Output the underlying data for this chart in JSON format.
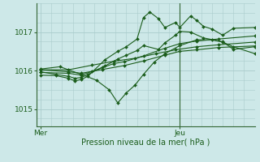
{
  "background_color": "#cde8e8",
  "grid_color": "#aacccc",
  "line_color": "#1a5c1a",
  "axis_color": "#336633",
  "text_color": "#1a5c1a",
  "xlabel": "Pression niveau de la mer( hPa )",
  "xtick_labels": [
    "Mer",
    "Jeu"
  ],
  "xtick_positions": [
    0.0,
    0.65
  ],
  "ytick_labels": [
    "1015",
    "1016",
    "1017"
  ],
  "ytick_positions": [
    1015,
    1016,
    1017
  ],
  "ylim": [
    1014.55,
    1017.75
  ],
  "xlim": [
    -0.02,
    1.0
  ],
  "series": [
    [
      0.0,
      1015.88,
      0.07,
      1015.87,
      0.13,
      1015.8,
      0.16,
      1015.73,
      0.19,
      1015.77,
      0.22,
      1015.85,
      0.3,
      1016.28,
      0.36,
      1016.5,
      0.4,
      1016.62,
      0.45,
      1016.82,
      0.48,
      1017.38,
      0.51,
      1017.52,
      0.55,
      1017.35,
      0.58,
      1017.12,
      0.63,
      1017.25,
      0.65,
      1017.12,
      0.7,
      1017.42,
      0.73,
      1017.3,
      0.76,
      1017.15,
      0.8,
      1017.08,
      0.85,
      1016.92,
      0.9,
      1017.1,
      1.0,
      1017.12
    ],
    [
      0.0,
      1015.97,
      0.07,
      1015.9,
      0.13,
      1015.85,
      0.16,
      1015.8,
      0.19,
      1015.82,
      0.22,
      1015.9,
      0.3,
      1016.12,
      0.36,
      1016.3,
      0.4,
      1016.4,
      0.45,
      1016.52,
      0.48,
      1016.65,
      0.55,
      1016.55,
      0.58,
      1016.72,
      0.63,
      1016.92,
      0.65,
      1017.02,
      0.7,
      1017.0,
      0.76,
      1016.85,
      0.85,
      1016.75,
      0.9,
      1016.55,
      1.0,
      1016.62
    ],
    [
      0.0,
      1015.95,
      0.13,
      1015.93,
      0.19,
      1015.88,
      0.24,
      1015.98,
      0.29,
      1016.08,
      0.34,
      1016.18,
      0.39,
      1016.23,
      0.48,
      1016.38,
      0.58,
      1016.58,
      0.65,
      1016.7,
      0.73,
      1016.77,
      0.83,
      1016.82,
      1.0,
      1016.9
    ],
    [
      0.0,
      1016.02,
      0.13,
      1015.97,
      0.19,
      1015.93,
      0.29,
      1016.03,
      0.39,
      1016.13,
      0.48,
      1016.25,
      0.58,
      1016.4,
      0.65,
      1016.5,
      0.73,
      1016.54,
      0.83,
      1016.6,
      1.0,
      1016.64
    ],
    [
      0.0,
      1016.02,
      0.13,
      1016.02,
      0.24,
      1016.14,
      0.34,
      1016.24,
      0.44,
      1016.32,
      0.54,
      1016.44,
      0.63,
      1016.54,
      0.73,
      1016.62,
      0.83,
      1016.67,
      1.0,
      1016.74
    ],
    [
      0.0,
      1016.04,
      0.09,
      1016.1,
      0.19,
      1015.9,
      0.26,
      1015.75,
      0.32,
      1015.5,
      0.36,
      1015.16,
      0.4,
      1015.42,
      0.44,
      1015.62,
      0.48,
      1015.9,
      0.53,
      1016.22,
      0.58,
      1016.44,
      0.65,
      1016.65,
      0.73,
      1016.8,
      0.8,
      1016.8,
      0.85,
      1016.74,
      0.9,
      1016.62,
      1.0,
      1016.44
    ]
  ]
}
